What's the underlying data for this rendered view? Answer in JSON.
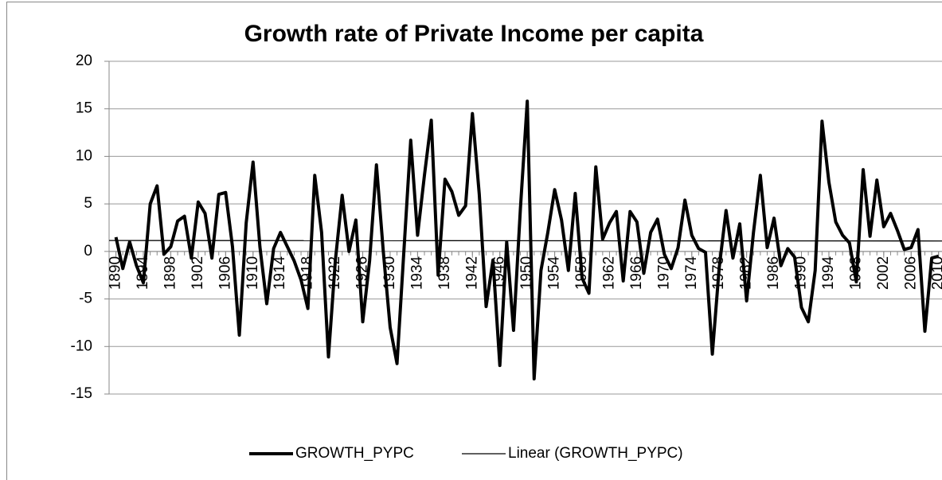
{
  "chart_data": {
    "type": "line",
    "title": "Growth rate of Private Income per capita",
    "x": [
      1890,
      1891,
      1892,
      1893,
      1894,
      1895,
      1896,
      1897,
      1898,
      1899,
      1900,
      1901,
      1902,
      1903,
      1904,
      1905,
      1906,
      1907,
      1908,
      1909,
      1910,
      1911,
      1912,
      1913,
      1914,
      1915,
      1916,
      1917,
      1918,
      1919,
      1920,
      1921,
      1922,
      1923,
      1924,
      1925,
      1926,
      1927,
      1928,
      1929,
      1930,
      1931,
      1932,
      1933,
      1934,
      1935,
      1936,
      1937,
      1938,
      1939,
      1940,
      1941,
      1942,
      1943,
      1944,
      1945,
      1946,
      1947,
      1948,
      1949,
      1950,
      1951,
      1952,
      1953,
      1954,
      1955,
      1956,
      1957,
      1958,
      1959,
      1960,
      1961,
      1962,
      1963,
      1964,
      1965,
      1966,
      1967,
      1968,
      1969,
      1970,
      1971,
      1972,
      1973,
      1974,
      1975,
      1976,
      1977,
      1978,
      1979,
      1980,
      1981,
      1982,
      1983,
      1984,
      1985,
      1986,
      1987,
      1988,
      1989,
      1990,
      1991,
      1992,
      1993,
      1994,
      1995,
      1996,
      1997,
      1998,
      1999,
      2000,
      2001,
      2002,
      2003,
      2004,
      2005,
      2006,
      2007,
      2008,
      2009,
      2010
    ],
    "series": [
      {
        "name": "GROWTH_PYPC",
        "color": "#000000",
        "line_width": 4,
        "values": [
          1.5,
          -1.8,
          1.0,
          -1.5,
          -3.3,
          5.0,
          6.9,
          -0.3,
          0.5,
          3.2,
          3.7,
          -0.7,
          5.2,
          4.0,
          -0.7,
          6.0,
          6.2,
          0.5,
          -8.8,
          3.0,
          9.4,
          0.5,
          -5.5,
          0.3,
          2.0,
          0.5,
          -1.0,
          -3.0,
          -6.0,
          8.0,
          2.0,
          -11.1,
          -1.0,
          5.9,
          0.0,
          3.3,
          -7.4,
          -1.0,
          9.1,
          0.0,
          -8.0,
          -11.8,
          0.0,
          11.7,
          1.7,
          8.0,
          13.8,
          -2.5,
          7.6,
          6.3,
          3.8,
          4.8,
          14.5,
          6.0,
          -5.8,
          -0.9,
          -12.0,
          1.0,
          -8.3,
          4.5,
          15.8,
          -13.4,
          -2.0,
          2.0,
          6.5,
          3.3,
          -2.0,
          6.1,
          -2.8,
          -4.4,
          8.9,
          1.3,
          3.0,
          4.2,
          -3.1,
          4.2,
          3.1,
          -2.3,
          2.0,
          3.4,
          -0.3,
          -1.8,
          0.4,
          5.4,
          1.7,
          0.3,
          -0.1,
          -10.8,
          -1.7,
          4.3,
          -0.7,
          2.9,
          -5.2,
          2.0,
          8.0,
          0.4,
          3.5,
          -1.5,
          0.3,
          -0.6,
          -5.9,
          -7.4,
          -2.0,
          13.7,
          7.3,
          3.1,
          1.7,
          0.9,
          -3.2,
          8.6,
          1.6,
          7.5,
          2.6,
          4.0,
          2.2,
          0.2,
          0.4,
          2.3,
          -8.4,
          -0.7,
          -0.5
        ]
      },
      {
        "name": "Linear (GROWTH_PYPC)",
        "color": "#000000",
        "line_width": 1.3,
        "x": [
          1889,
          2010.5
        ],
        "values": [
          1.15,
          1.1
        ]
      }
    ],
    "xlim": [
      1889,
      2010.5
    ],
    "xticks": [
      1890,
      1894,
      1898,
      1902,
      1906,
      1910,
      1914,
      1918,
      1922,
      1926,
      1930,
      1934,
      1938,
      1942,
      1946,
      1950,
      1954,
      1958,
      1962,
      1966,
      1970,
      1974,
      1978,
      1982,
      1986,
      1990,
      1994,
      1998,
      2002,
      2006,
      2010
    ],
    "ylim": [
      -15,
      20
    ],
    "yticks": [
      -15,
      -10,
      -5,
      0,
      5,
      10,
      15,
      20
    ],
    "grid": true
  }
}
